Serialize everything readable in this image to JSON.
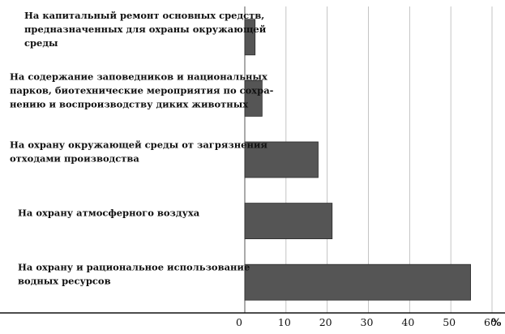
{
  "chart_data": {
    "type": "bar",
    "orientation": "horizontal",
    "title": "",
    "xlabel": "",
    "ylabel": "",
    "unit": "%",
    "xlim": [
      0,
      60
    ],
    "x_ticks": [
      "0",
      "10",
      "20",
      "30",
      "40",
      "50",
      "60"
    ],
    "grid": true,
    "legend": "none",
    "bar_color": "#555555",
    "categories": [
      [
        "На капитальный ремонт основных средств,",
        "предназначенных для охраны окружающей",
        "среды"
      ],
      [
        "На содержание заповедников и национальных",
        "парков, биотехнические мероприятия по сохра-",
        "нению и воспроизводству диких животных"
      ],
      [
        "На охрану окружающей среды от загрязнения",
        "отходами производства"
      ],
      [
        "На охрану атмосферного воздуха"
      ],
      [
        "На охрану и рациональное использование",
        "водных ресурсов"
      ]
    ],
    "values": [
      2.5,
      4.2,
      17.8,
      21.2,
      54.8
    ]
  }
}
